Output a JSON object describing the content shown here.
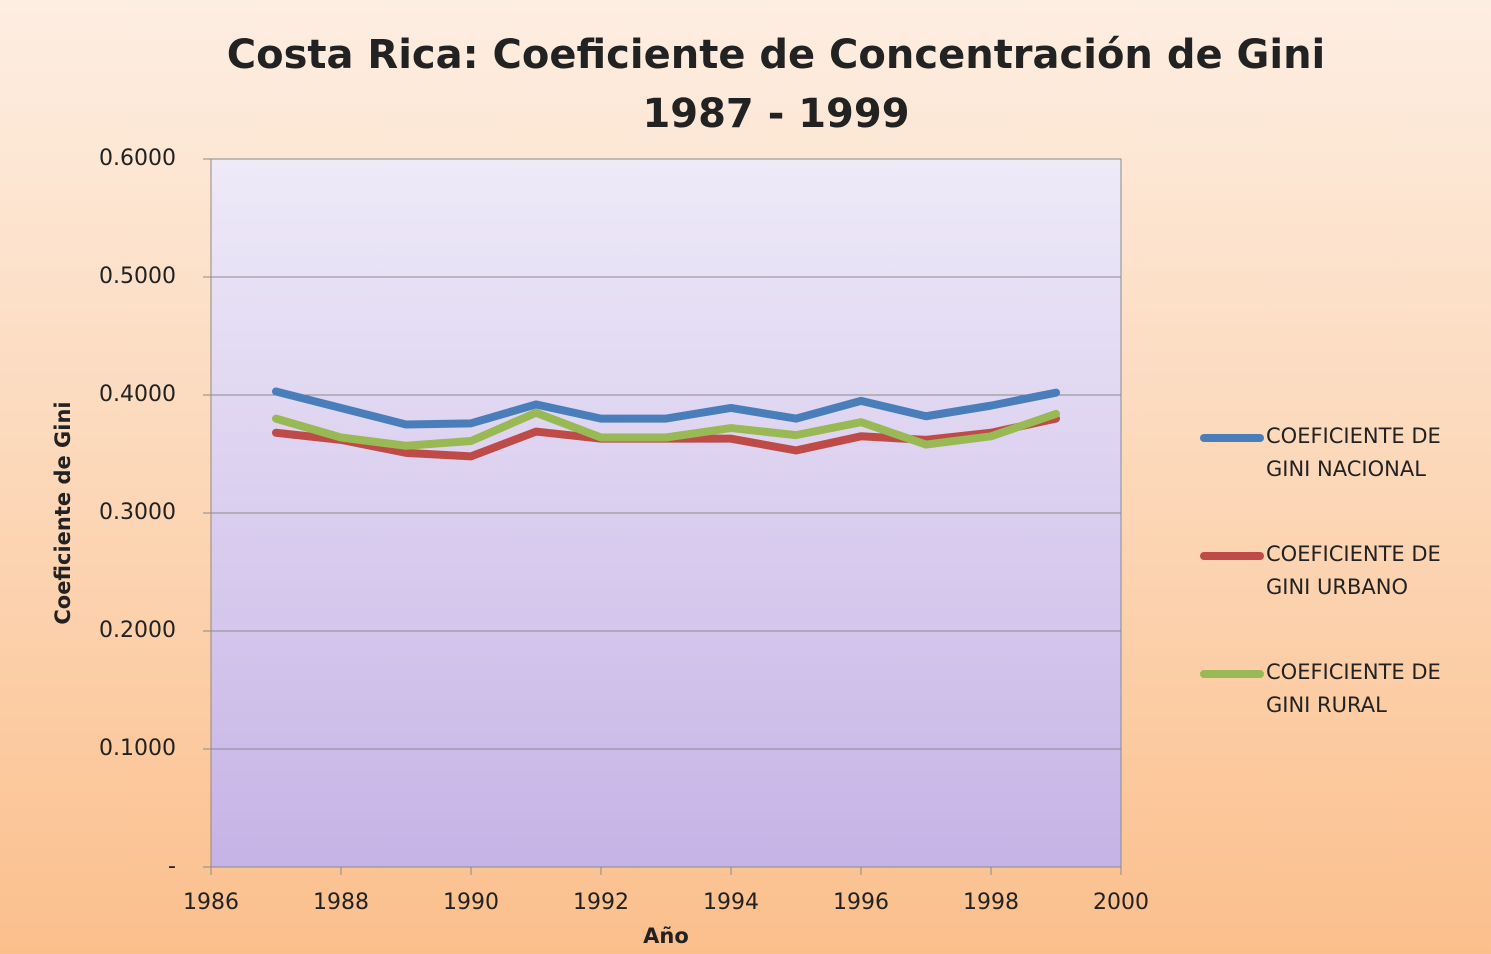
{
  "chart_data": {
    "type": "line",
    "title": "Costa Rica: Coeficiente de Concentración de Gini",
    "subtitle": "1987 - 1999",
    "x_label": "Año",
    "y_label": "Coeficiente de Gini",
    "x": [
      1987,
      1988,
      1989,
      1990,
      1991,
      1992,
      1993,
      1994,
      1995,
      1996,
      1997,
      1998,
      1999
    ],
    "series": [
      {
        "name": "COEFICIENTE DE GINI NACIONAL",
        "color": "#4a7ebb",
        "values": [
          0.403,
          0.389,
          0.375,
          0.376,
          0.392,
          0.38,
          0.38,
          0.389,
          0.38,
          0.395,
          0.382,
          0.391,
          0.402
        ]
      },
      {
        "name": "COEFICIENTE DE GINI URBANO",
        "color": "#be4b48",
        "values": [
          0.368,
          0.362,
          0.351,
          0.348,
          0.369,
          0.363,
          0.363,
          0.363,
          0.353,
          0.365,
          0.362,
          0.368,
          0.38
        ]
      },
      {
        "name": "COEFICIENTE DE GINI RURAL",
        "color": "#98b954",
        "values": [
          0.38,
          0.364,
          0.357,
          0.361,
          0.385,
          0.364,
          0.364,
          0.372,
          0.366,
          0.377,
          0.358,
          0.365,
          0.384
        ]
      }
    ],
    "xlim": [
      1986,
      2000
    ],
    "xticks": [
      1986,
      1988,
      1990,
      1992,
      1994,
      1996,
      1998,
      2000
    ],
    "ylim": [
      0,
      0.6
    ],
    "yticks": [
      {
        "value": 0,
        "label": "-"
      },
      {
        "value": 0.1,
        "label": "0.1000"
      },
      {
        "value": 0.2,
        "label": "0.2000"
      },
      {
        "value": 0.3,
        "label": "0.3000"
      },
      {
        "value": 0.4,
        "label": "0.4000"
      },
      {
        "value": 0.5,
        "label": "0.5000"
      },
      {
        "value": 0.6,
        "label": "0.6000"
      }
    ],
    "grid": true,
    "legend": "right"
  }
}
